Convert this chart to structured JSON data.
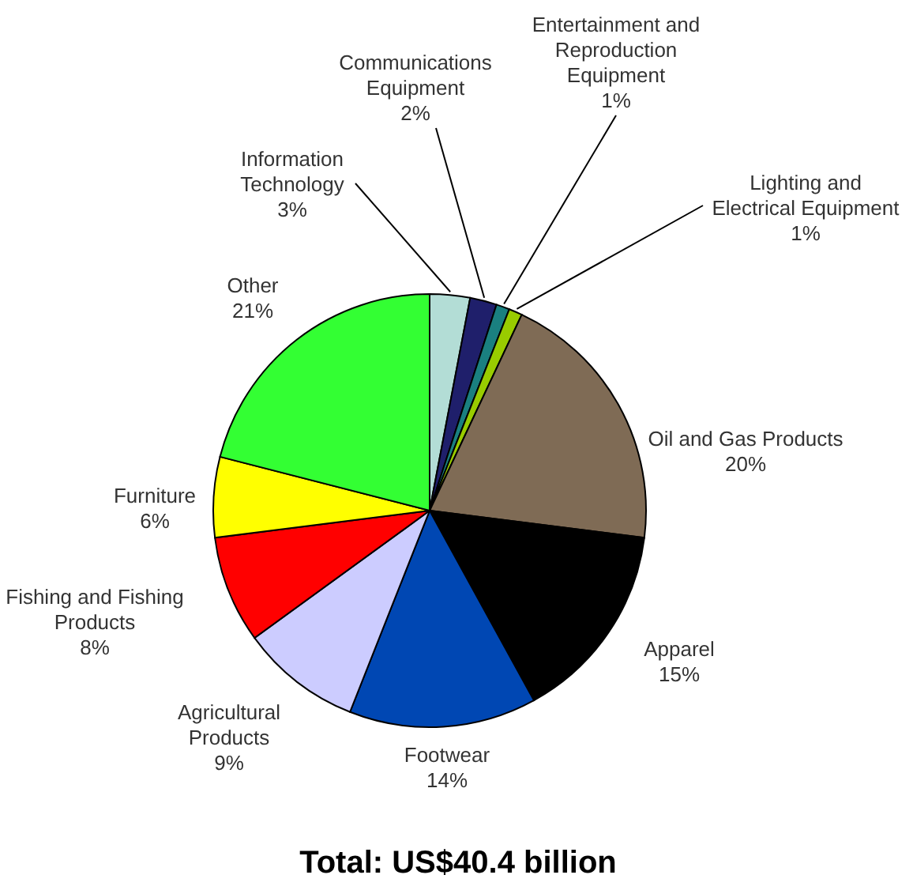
{
  "chart_data": {
    "type": "pie",
    "title": "Total: US$40.4 billion",
    "categories": [
      "Information Technology",
      "Communications Equipment",
      "Entertainment and Reproduction Equipment",
      "Lighting and Electrical Equipment",
      "Oil and Gas Products",
      "Apparel",
      "Footwear",
      "Agricultural Products",
      "Fishing and Fishing Products",
      "Furniture",
      "Other"
    ],
    "values": [
      3,
      2,
      1,
      1,
      20,
      15,
      14,
      9,
      8,
      6,
      21
    ],
    "colors": [
      "#b3ddd6",
      "#1f1f6b",
      "#1a8080",
      "#99cc00",
      "#7f6b55",
      "#000000",
      "#0047b3",
      "#ccccff",
      "#ff0000",
      "#ffff00",
      "#33ff33"
    ],
    "value_labels": [
      "3%",
      "2%",
      "1%",
      "1%",
      "20%",
      "15%",
      "14%",
      "9%",
      "8%",
      "6%",
      "21%"
    ]
  }
}
